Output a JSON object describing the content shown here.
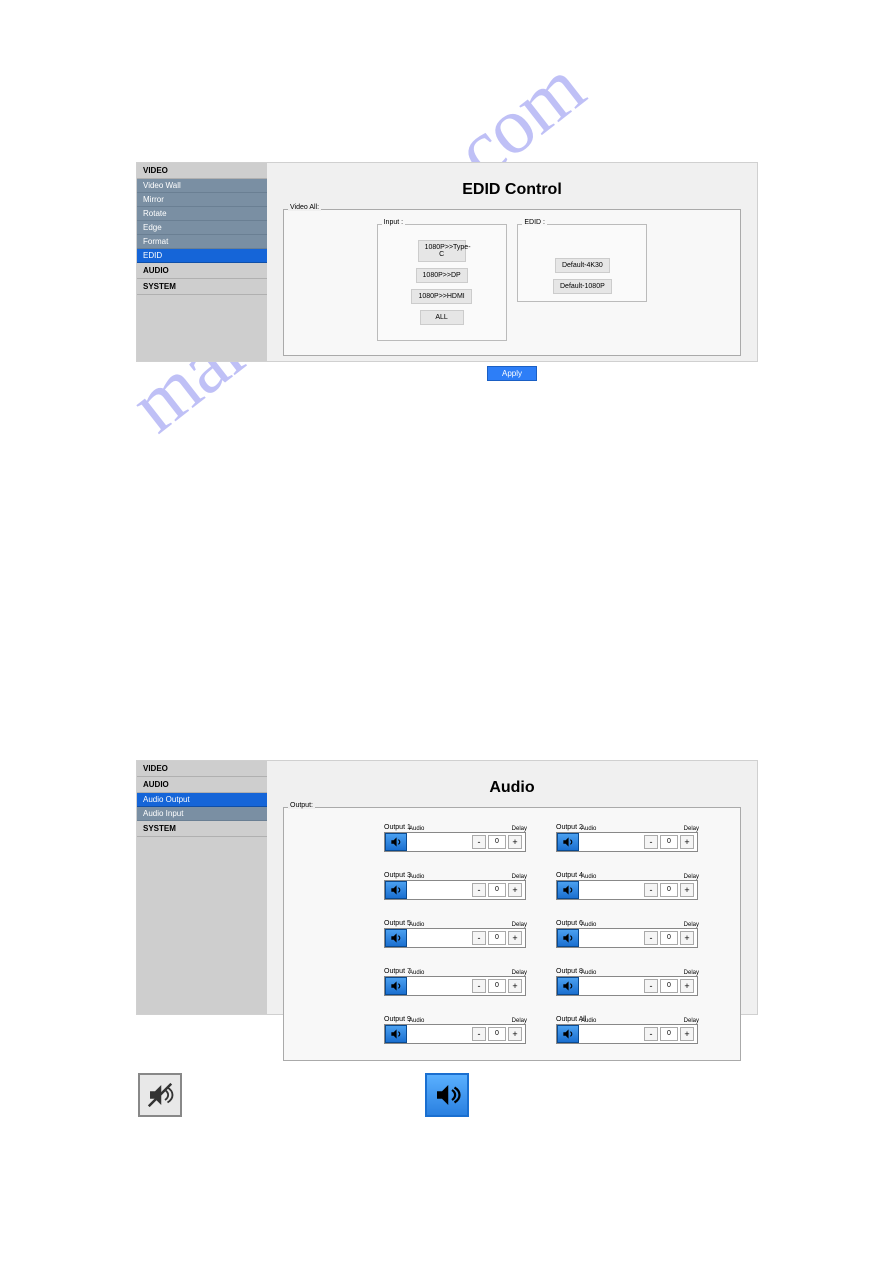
{
  "watermark": "manualshive.com",
  "panel1": {
    "sidebar": {
      "video_header": "VIDEO",
      "items": [
        "Video Wall",
        "Mirror",
        "Rotate",
        "Edge",
        "Format"
      ],
      "active": "EDID",
      "audio_header": "AUDIO",
      "system_header": "SYSTEM"
    },
    "title": "EDID Control",
    "video_all_label": "Video All:",
    "input_label": "Input :",
    "edid_label": "EDID :",
    "input_buttons": [
      "1080P>>Type-C",
      "1080P>>DP",
      "1080P>>HDMI",
      "ALL"
    ],
    "edid_buttons": [
      "Default-4K30",
      "Default-1080P"
    ],
    "apply": "Apply"
  },
  "panel2": {
    "sidebar": {
      "video_header": "VIDEO",
      "audio_header": "AUDIO",
      "active": "Audio Output",
      "items": [
        "Audio Input"
      ],
      "system_header": "SYSTEM"
    },
    "title": "Audio",
    "output_label": "Output:",
    "outputs": [
      {
        "label": "Output 1",
        "audio": "Audio",
        "delay": "Delay",
        "value": "0"
      },
      {
        "label": "Output 2",
        "audio": "Audio",
        "delay": "Delay",
        "value": "0"
      },
      {
        "label": "Output 3",
        "audio": "Audio",
        "delay": "Delay",
        "value": "0"
      },
      {
        "label": "Output 4",
        "audio": "Audio",
        "delay": "Delay",
        "value": "0"
      },
      {
        "label": "Output 5",
        "audio": "Audio",
        "delay": "Delay",
        "value": "0"
      },
      {
        "label": "Output 6",
        "audio": "Audio",
        "delay": "Delay",
        "value": "0"
      },
      {
        "label": "Output 7",
        "audio": "Audio",
        "delay": "Delay",
        "value": "0"
      },
      {
        "label": "Output 8",
        "audio": "Audio",
        "delay": "Delay",
        "value": "0"
      },
      {
        "label": "Output 9",
        "audio": "Audio",
        "delay": "Delay",
        "value": "0"
      },
      {
        "label": "Output All",
        "audio": "Audio",
        "delay": "Delay",
        "value": "0"
      }
    ]
  },
  "colors": {
    "sidebar_bg": "#cecece",
    "sidebar_item": "#7a8fa3",
    "sidebar_active": "#1565d8",
    "main_bg": "#f0f0f0",
    "apply_btn": "#2d7ef7",
    "speaker_on": "#2a80e0",
    "watermark": "#8b8df0"
  }
}
